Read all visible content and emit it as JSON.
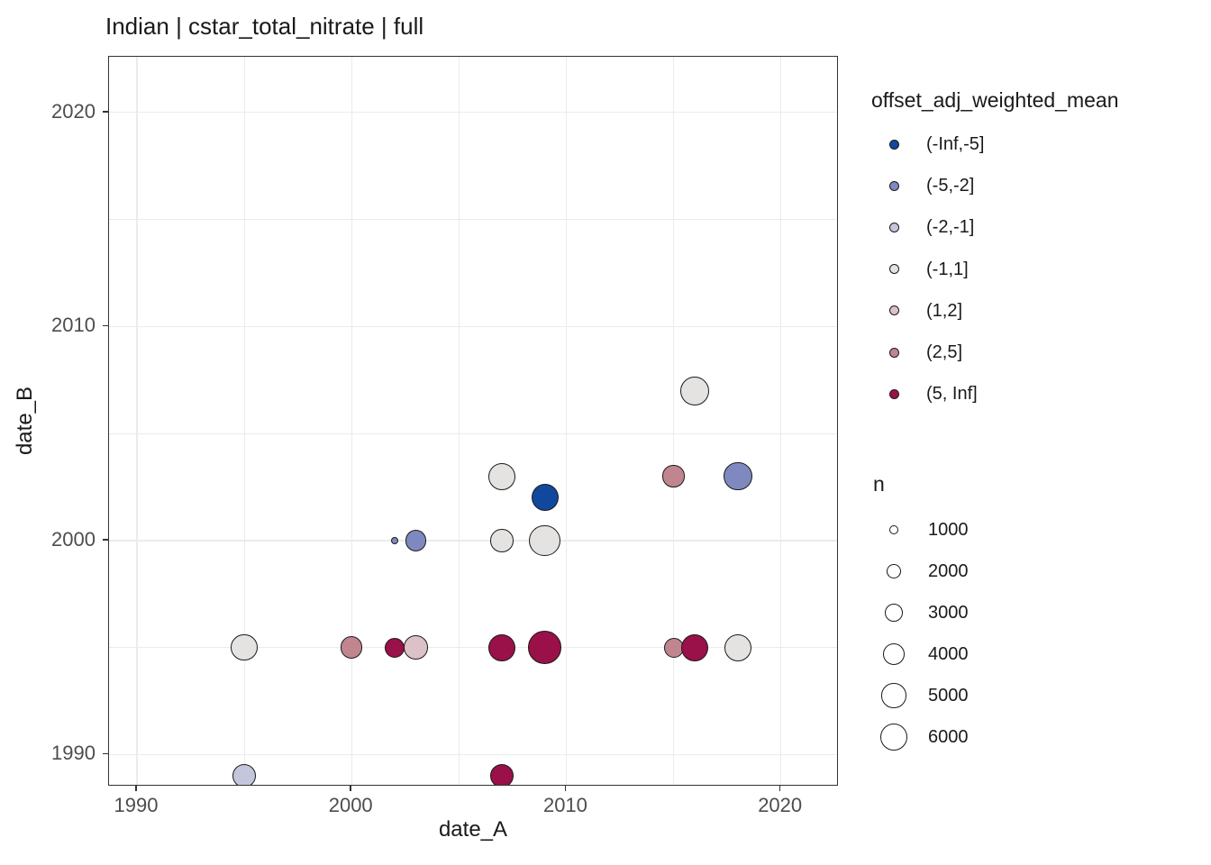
{
  "title": "Indian | cstar_total_nitrate | full",
  "axes": {
    "x": {
      "title": "date_A",
      "major_ticks": [
        1990,
        2000,
        2010,
        2020
      ],
      "minor_ticks": [
        1995,
        2005,
        2015
      ],
      "range": [
        1988.7,
        2022.7
      ]
    },
    "y": {
      "title": "date_B",
      "major_ticks": [
        1990,
        2000,
        2010,
        2020
      ],
      "minor_ticks": [
        1995,
        2005,
        2015
      ],
      "range": [
        1988.5,
        2022.6
      ]
    }
  },
  "legends": {
    "color": {
      "title": "offset_adj_weighted_mean",
      "items": [
        {
          "label": "(-Inf,-5]",
          "color": "#11489E"
        },
        {
          "label": "(-5,-2]",
          "color": "#7F89BF"
        },
        {
          "label": "(-2,-1]",
          "color": "#C4C7DB"
        },
        {
          "label": "(-1,1]",
          "color": "#E4E3E2"
        },
        {
          "label": "(1,2]",
          "color": "#DCC1C8"
        },
        {
          "label": "(2,5]",
          "color": "#C18590"
        },
        {
          "label": "(5, Inf]",
          "color": "#9A1048"
        }
      ]
    },
    "size": {
      "title": "n",
      "items": [
        {
          "label": "1000",
          "value": 1000
        },
        {
          "label": "2000",
          "value": 2000
        },
        {
          "label": "3000",
          "value": 3000
        },
        {
          "label": "4000",
          "value": 4000
        },
        {
          "label": "5000",
          "value": 5000
        },
        {
          "label": "6000",
          "value": 6000
        }
      ]
    }
  },
  "chart_data": {
    "type": "scatter",
    "title": "Indian | cstar_total_nitrate | full",
    "xlabel": "date_A",
    "ylabel": "date_B",
    "color_field": "offset_adj_weighted_mean",
    "size_field": "n",
    "xlim": [
      1988.7,
      2022.7
    ],
    "ylim": [
      1988.5,
      2022.6
    ],
    "grid": "on",
    "legend_position": "right",
    "size_scale": {
      "n_ref": [
        800,
        8300
      ],
      "r_ref": [
        4.3,
        18.3
      ]
    },
    "points": [
      {
        "date_A": 1995,
        "date_B": 1989,
        "offset_adj_weighted_mean": "(-2,-1]",
        "n": 4700
      },
      {
        "date_A": 2007,
        "date_B": 1989,
        "offset_adj_weighted_mean": "(5, Inf]",
        "n": 4700
      },
      {
        "date_A": 1995,
        "date_B": 1995,
        "offset_adj_weighted_mean": "(-1,1]",
        "n": 5600
      },
      {
        "date_A": 2000,
        "date_B": 1995,
        "offset_adj_weighted_mean": "(2,5]",
        "n": 4100
      },
      {
        "date_A": 2002,
        "date_B": 1995,
        "offset_adj_weighted_mean": "(5, Inf]",
        "n": 3400
      },
      {
        "date_A": 2003,
        "date_B": 1995,
        "offset_adj_weighted_mean": "(1,2]",
        "n": 4700
      },
      {
        "date_A": 2007,
        "date_B": 1995,
        "offset_adj_weighted_mean": "(5, Inf]",
        "n": 5800
      },
      {
        "date_A": 2009,
        "date_B": 1995,
        "offset_adj_weighted_mean": "(5, Inf]",
        "n": 8300
      },
      {
        "date_A": 2015,
        "date_B": 1995,
        "offset_adj_weighted_mean": "(2,5]",
        "n": 3400
      },
      {
        "date_A": 2016,
        "date_B": 1995,
        "offset_adj_weighted_mean": "(5, Inf]",
        "n": 5800
      },
      {
        "date_A": 2018,
        "date_B": 1995,
        "offset_adj_weighted_mean": "(-1,1]",
        "n": 5800
      },
      {
        "date_A": 2002,
        "date_B": 2000,
        "offset_adj_weighted_mean": "(-5,-2]",
        "n": 800
      },
      {
        "date_A": 2003,
        "date_B": 2000,
        "offset_adj_weighted_mean": "(-5,-2]",
        "n": 3800
      },
      {
        "date_A": 2007,
        "date_B": 2000,
        "offset_adj_weighted_mean": "(-1,1]",
        "n": 4400
      },
      {
        "date_A": 2009,
        "date_B": 2000,
        "offset_adj_weighted_mean": "(-1,1]",
        "n": 7500
      },
      {
        "date_A": 2009,
        "date_B": 2002,
        "offset_adj_weighted_mean": "(-Inf,-5]",
        "n": 5800
      },
      {
        "date_A": 2007,
        "date_B": 2003,
        "offset_adj_weighted_mean": "(-1,1]",
        "n": 5800
      },
      {
        "date_A": 2015,
        "date_B": 2003,
        "offset_adj_weighted_mean": "(2,5]",
        "n": 4000
      },
      {
        "date_A": 2018,
        "date_B": 2003,
        "offset_adj_weighted_mean": "(-5,-2]",
        "n": 6300
      },
      {
        "date_A": 2016,
        "date_B": 2007,
        "offset_adj_weighted_mean": "(-1,1]",
        "n": 6500
      }
    ]
  },
  "style": {
    "grid_color": "#EBEBEB",
    "panel_border": "#333333",
    "tick_text": "#4D4D4D",
    "text": "#1A1A1A",
    "point_stroke": "#1A1A1A"
  }
}
